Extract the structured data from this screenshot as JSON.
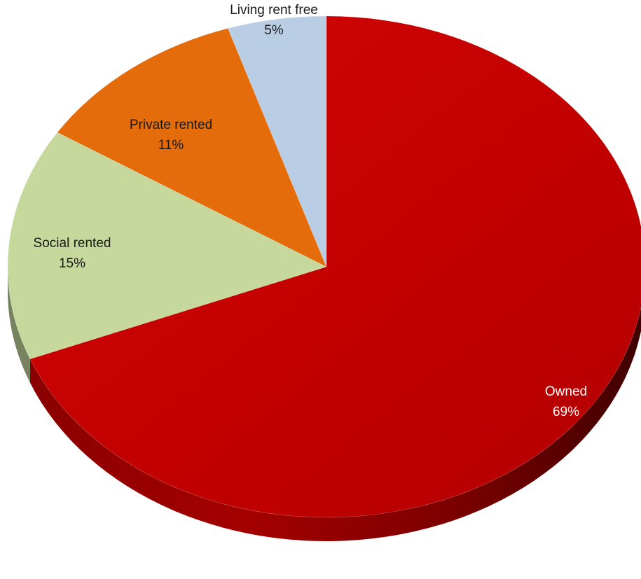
{
  "chart_data": {
    "type": "pie",
    "style": "3d",
    "title": "",
    "slices": [
      {
        "label": "Owned",
        "percent_label": "69%",
        "value": 69,
        "color": "#c00000",
        "label_color": "#ffffff"
      },
      {
        "label": "Social rented",
        "percent_label": "15%",
        "value": 15,
        "color": "#c6d89c",
        "label_color": "#1a1a1a"
      },
      {
        "label": "Private rented",
        "percent_label": "11%",
        "value": 11,
        "color": "#e46c0a",
        "label_color": "#1a1a1a"
      },
      {
        "label": "Living rent free",
        "percent_label": "5%",
        "value": 5,
        "color": "#b9cde5",
        "label_color": "#1a1a1a"
      }
    ],
    "start_angle": "12 o'clock",
    "direction": "clockwise",
    "legend": "none",
    "labels": "category name and percentage on slices"
  }
}
